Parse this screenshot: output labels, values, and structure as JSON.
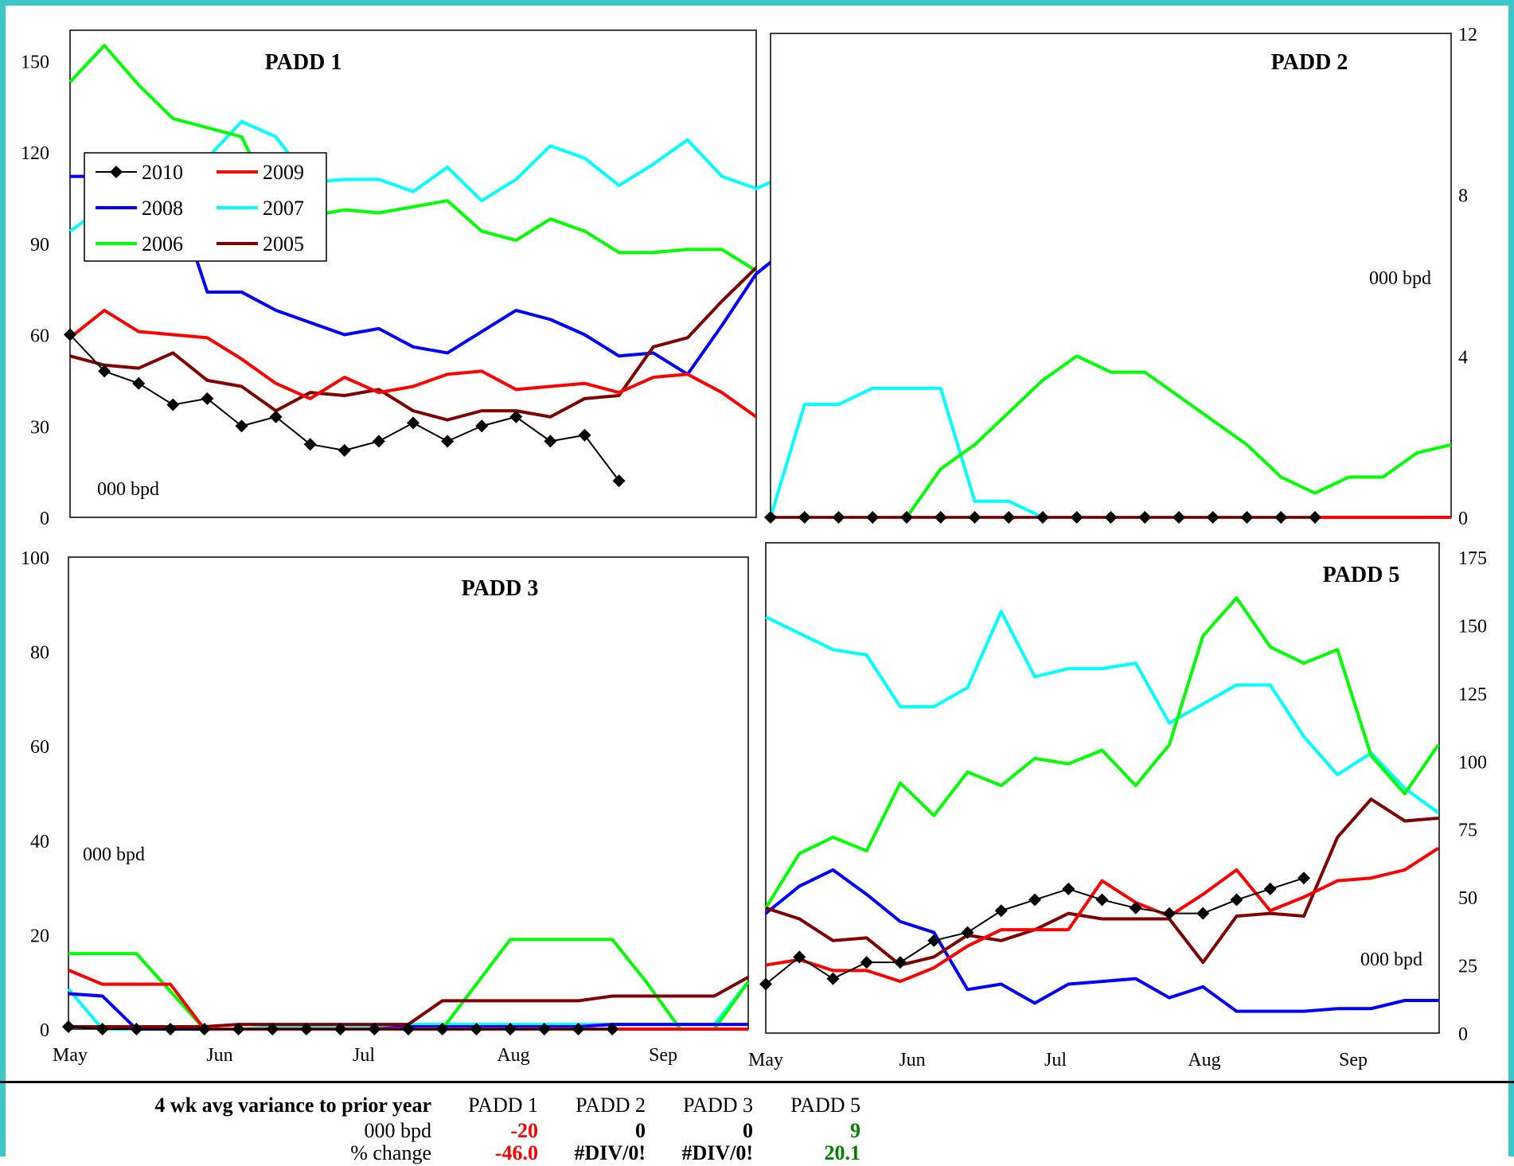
{
  "legend": [
    {
      "label": "2010",
      "color": "#000000",
      "marker": "diamond"
    },
    {
      "label": "2009",
      "color": "#ff0000"
    },
    {
      "label": "2008",
      "color": "#0000ff"
    },
    {
      "label": "2007",
      "color": "#00ffff"
    },
    {
      "label": "2006",
      "color": "#00ff00"
    },
    {
      "label": "2005",
      "color": "#800000"
    }
  ],
  "chart_data": [
    {
      "type": "line",
      "title": "PADD 1",
      "unit_label": "000 bpd",
      "ylim": [
        0,
        160
      ],
      "yticks": [
        0,
        30,
        60,
        90,
        120,
        150
      ],
      "axis_side": "left",
      "series": [
        {
          "name": "2010",
          "values": [
            60,
            48,
            44,
            37,
            39,
            30,
            33,
            24,
            22,
            25,
            31,
            25,
            30,
            33,
            25,
            27,
            12
          ]
        },
        {
          "name": "2009",
          "values": [
            59,
            68,
            61,
            60,
            59,
            52,
            44,
            39,
            46,
            41,
            43,
            47,
            48,
            42,
            43,
            44,
            41,
            46,
            47,
            41,
            33
          ]
        },
        {
          "name": "2008",
          "values": [
            112,
            112,
            112,
            108,
            74,
            74,
            68,
            64,
            60,
            62,
            56,
            54,
            61,
            68,
            65,
            60,
            53,
            54,
            47,
            63,
            80,
            89
          ]
        },
        {
          "name": "2007",
          "values": [
            94,
            102,
            109,
            113,
            118,
            130,
            125,
            110,
            111,
            111,
            107,
            115,
            104,
            111,
            122,
            118,
            109,
            116,
            124,
            112,
            108,
            113
          ]
        },
        {
          "name": "2006",
          "values": [
            143,
            155,
            142,
            131,
            128,
            125,
            102,
            99,
            101,
            100,
            102,
            104,
            94,
            91,
            98,
            94,
            87,
            87,
            88,
            88,
            81
          ]
        },
        {
          "name": "2005",
          "values": [
            53,
            50,
            49,
            54,
            45,
            43,
            35,
            41,
            40,
            42,
            35,
            32,
            35,
            35,
            33,
            39,
            40,
            56,
            59,
            71,
            82
          ]
        }
      ]
    },
    {
      "type": "line",
      "title": "PADD 2",
      "unit_label": "000 bpd",
      "ylim": [
        0,
        12
      ],
      "yticks": [
        0,
        4,
        8,
        12
      ],
      "axis_side": "right",
      "series": [
        {
          "name": "2010",
          "values": [
            0,
            0,
            0,
            0,
            0,
            0,
            0,
            0,
            0,
            0,
            0,
            0,
            0,
            0,
            0,
            0,
            0
          ]
        },
        {
          "name": "2009",
          "values": [
            0,
            0,
            0,
            0,
            0,
            0,
            0,
            0,
            0,
            0,
            0,
            0,
            0,
            0,
            0,
            0,
            0,
            0,
            0,
            0,
            0
          ]
        },
        {
          "name": "2008",
          "values": [
            0,
            0,
            0,
            0,
            0,
            0,
            0,
            0,
            0,
            0,
            0,
            0,
            0,
            0,
            0,
            0,
            0,
            0,
            0,
            0,
            0
          ]
        },
        {
          "name": "2007",
          "values": [
            0,
            2.8,
            2.8,
            3.2,
            3.2,
            3.2,
            0.4,
            0.4,
            0
          ]
        },
        {
          "name": "2006",
          "values": [
            0,
            0,
            0,
            0,
            0,
            1.2,
            1.8,
            2.6,
            3.4,
            4,
            3.6,
            3.6,
            3,
            2.4,
            1.8,
            1,
            0.6,
            1,
            1,
            1.6,
            1.8
          ]
        },
        {
          "name": "2005",
          "values": [
            0,
            0,
            0,
            0,
            0,
            0,
            0,
            0,
            0,
            0,
            0,
            0,
            0,
            0,
            0,
            0,
            0,
            0,
            0,
            0,
            0
          ]
        }
      ]
    },
    {
      "type": "line",
      "title": "PADD 3",
      "unit_label": "000 bpd",
      "ylim": [
        0,
        100
      ],
      "yticks": [
        0,
        20,
        40,
        60,
        80,
        100
      ],
      "axis_side": "left",
      "xticks": [
        "May",
        "Jun",
        "Jul",
        "Aug",
        "Sep"
      ],
      "series": [
        {
          "name": "2010",
          "values": [
            0.5,
            0,
            0,
            0,
            0,
            0,
            0,
            0,
            0,
            0,
            0,
            0,
            0,
            0,
            0,
            0,
            0
          ]
        },
        {
          "name": "2009",
          "values": [
            12.5,
            9.5,
            9.5,
            9.5,
            0,
            0,
            0,
            0,
            0,
            0,
            0,
            0,
            0,
            0,
            0,
            0,
            0,
            0,
            0,
            0,
            0
          ]
        },
        {
          "name": "2008",
          "values": [
            7.5,
            7,
            0,
            0,
            0,
            0,
            0,
            0,
            0,
            0,
            0.5,
            0.5,
            0.5,
            0.5,
            0.5,
            0.5,
            1,
            1,
            1,
            1,
            1
          ]
        },
        {
          "name": "2007",
          "values": [
            8.5,
            0,
            0,
            0,
            0,
            0,
            0.5,
            0.5,
            0.5,
            0.5,
            1,
            1,
            1,
            1,
            1,
            1,
            1,
            1,
            1,
            1,
            10
          ]
        },
        {
          "name": "2006",
          "values": [
            16,
            16,
            16,
            8,
            0,
            0,
            0,
            0,
            0,
            0,
            0,
            0,
            9.5,
            19,
            19,
            19,
            19,
            10,
            0,
            0,
            10
          ]
        },
        {
          "name": "2005",
          "values": [
            0.5,
            0.5,
            0.5,
            0.5,
            0.5,
            1,
            1,
            1,
            1,
            1,
            1,
            6,
            6,
            6,
            6,
            6,
            7,
            7,
            7,
            7,
            11
          ]
        }
      ]
    },
    {
      "type": "line",
      "title": "PADD 5",
      "unit_label": "000 bpd",
      "ylim": [
        0,
        175
      ],
      "yticks": [
        0,
        25,
        50,
        75,
        100,
        125,
        150,
        175
      ],
      "axis_side": "right",
      "xticks": [
        "May",
        "Jun",
        "Jul",
        "Aug",
        "Sep"
      ],
      "series": [
        {
          "name": "2010",
          "values": [
            18,
            28,
            20,
            26,
            26,
            34,
            37,
            45,
            49,
            53,
            49,
            46,
            44,
            44,
            49,
            53,
            57
          ]
        },
        {
          "name": "2009",
          "values": [
            25,
            27,
            23,
            23,
            19,
            24,
            32,
            38,
            38,
            38,
            56,
            48,
            43,
            51,
            60,
            45,
            50,
            56,
            57,
            60,
            68
          ]
        },
        {
          "name": "2008",
          "values": [
            44,
            54,
            60,
            51,
            41,
            37,
            16,
            18,
            11,
            18,
            19,
            20,
            13,
            17,
            8,
            8,
            8,
            9,
            9,
            12,
            12
          ]
        },
        {
          "name": "2007",
          "values": [
            153,
            147,
            141,
            139,
            120,
            120,
            127,
            155,
            131,
            134,
            134,
            136,
            114,
            121,
            128,
            128,
            109,
            95,
            103,
            90,
            81
          ]
        },
        {
          "name": "2006",
          "values": [
            46,
            66,
            72,
            67,
            92,
            80,
            96,
            91,
            101,
            99,
            104,
            91,
            106,
            146,
            160,
            142,
            136,
            141,
            102,
            88,
            106
          ]
        },
        {
          "name": "2005",
          "values": [
            46,
            42,
            34,
            35,
            25,
            28,
            36,
            34,
            38,
            44,
            42,
            42,
            42,
            26,
            43,
            44,
            43,
            72,
            86,
            78,
            79
          ]
        }
      ]
    }
  ],
  "summary": {
    "header_label": "4 wk avg variance to prior year",
    "columns": [
      "PADD 1",
      "PADD 2",
      "PADD 3",
      "PADD 5"
    ],
    "rows": [
      {
        "label": "000 bpd",
        "values": [
          "-20",
          "0",
          "0",
          "9"
        ],
        "colors": [
          "#ff0000",
          "#000000",
          "#000000",
          "#008000"
        ]
      },
      {
        "label": "% change",
        "values": [
          "-46.0",
          "#DIV/0!",
          "#DIV/0!",
          "20.1"
        ],
        "colors": [
          "#ff0000",
          "#000000",
          "#000000",
          "#008000"
        ]
      }
    ]
  }
}
